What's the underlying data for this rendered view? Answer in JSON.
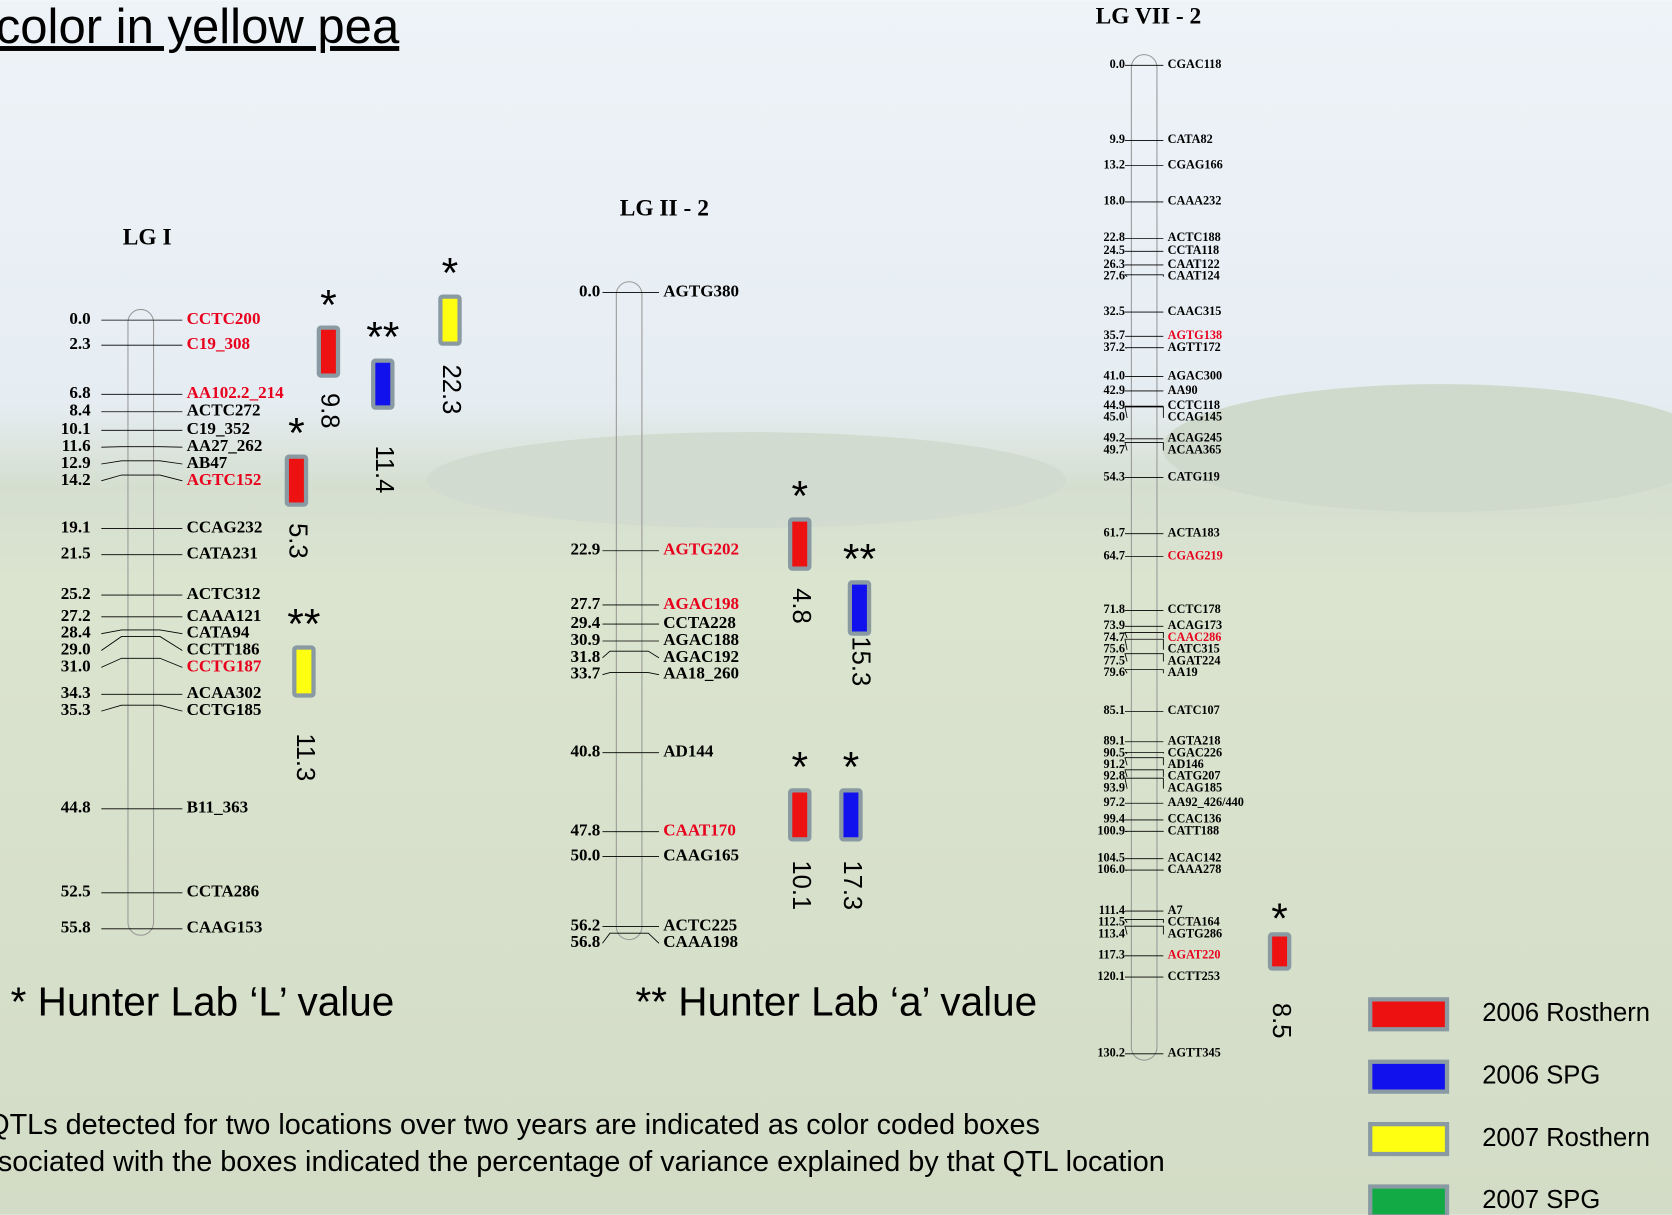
{
  "title": "color in yellow pea",
  "linkage_groups": [
    {
      "name": "LG I",
      "markers": [
        {
          "pos": "0.0",
          "name": "CCTC200",
          "color": "#e8001c"
        },
        {
          "pos": "2.3",
          "name": "C19_308",
          "color": "#e8001c"
        },
        {
          "pos": "6.8",
          "name": "AA102.2_214",
          "color": "#e8001c"
        },
        {
          "pos": "8.4",
          "name": "ACTC272"
        },
        {
          "pos": "10.1",
          "name": "C19_352"
        },
        {
          "pos": "11.6",
          "name": "AA27_262"
        },
        {
          "pos": "12.9",
          "name": "AB47"
        },
        {
          "pos": "14.2",
          "name": "AGTC152",
          "color": "#e8001c"
        },
        {
          "pos": "19.1",
          "name": "CCAG232"
        },
        {
          "pos": "21.5",
          "name": "CATA231"
        },
        {
          "pos": "25.2",
          "name": "ACTC312"
        },
        {
          "pos": "27.2",
          "name": "CAAA121"
        },
        {
          "pos": "28.4",
          "name": "CATA94"
        },
        {
          "pos": "29.0",
          "name": "CCTT186"
        },
        {
          "pos": "31.0",
          "name": "CCTG187",
          "color": "#e8001c"
        },
        {
          "pos": "34.3",
          "name": "ACAA302"
        },
        {
          "pos": "35.3",
          "name": "CCTG185"
        },
        {
          "pos": "44.8",
          "name": "B11_363"
        },
        {
          "pos": "52.5",
          "name": "CCTA286"
        },
        {
          "pos": "55.8",
          "name": "CAAG153"
        }
      ],
      "qtls": [
        {
          "stars": "*",
          "value": "9.8",
          "color": "#ee1111"
        },
        {
          "stars": "**",
          "value": "11.4",
          "color": "#1111ee"
        },
        {
          "stars": "*",
          "value": "22.3",
          "color": "#ffff11"
        },
        {
          "stars": "*",
          "value": "5.3",
          "color": "#ee1111"
        },
        {
          "stars": "**",
          "value": "11.3",
          "color": "#ffff11"
        }
      ]
    },
    {
      "name": "LG II - 2",
      "markers": [
        {
          "pos": "0.0",
          "name": "AGTG380"
        },
        {
          "pos": "22.9",
          "name": "AGTG202",
          "color": "#e8001c"
        },
        {
          "pos": "27.7",
          "name": "AGAC198",
          "color": "#e8001c"
        },
        {
          "pos": "29.4",
          "name": "CCTA228"
        },
        {
          "pos": "30.9",
          "name": "AGAC188"
        },
        {
          "pos": "31.8",
          "name": "AGAC192"
        },
        {
          "pos": "33.7",
          "name": "AA18_260"
        },
        {
          "pos": "40.8",
          "name": "AD144"
        },
        {
          "pos": "47.8",
          "name": "CAAT170",
          "color": "#e8001c"
        },
        {
          "pos": "50.0",
          "name": "CAAG165"
        },
        {
          "pos": "56.2",
          "name": "ACTC225"
        },
        {
          "pos": "56.8",
          "name": "CAAA198"
        }
      ],
      "qtls": [
        {
          "stars": "*",
          "value": "4.8",
          "color": "#ee1111"
        },
        {
          "stars": "**",
          "value": "15.3",
          "color": "#1111ee"
        },
        {
          "stars": "*",
          "value": "10.1",
          "color": "#ee1111"
        },
        {
          "stars": "*",
          "value": "17.3",
          "color": "#1111ee"
        }
      ]
    },
    {
      "name": "LG VII - 2",
      "markers": [
        {
          "pos": "0.0",
          "name": "CGAC118"
        },
        {
          "pos": "9.9",
          "name": "CATA82"
        },
        {
          "pos": "13.2",
          "name": "CGAG166"
        },
        {
          "pos": "18.0",
          "name": "CAAA232"
        },
        {
          "pos": "22.8",
          "name": "ACTC188"
        },
        {
          "pos": "24.5",
          "name": "CCTA118"
        },
        {
          "pos": "26.3",
          "name": "CAAT122"
        },
        {
          "pos": "27.6",
          "name": "CAAT124"
        },
        {
          "pos": "32.5",
          "name": "CAAC315"
        },
        {
          "pos": "35.7",
          "name": "AGTG138",
          "color": "#e8001c"
        },
        {
          "pos": "37.2",
          "name": "AGTT172"
        },
        {
          "pos": "41.0",
          "name": "AGAC300"
        },
        {
          "pos": "42.9",
          "name": "AA90"
        },
        {
          "pos": "44.9",
          "name": "CCTC118"
        },
        {
          "pos": "45.0",
          "name": "CCAG145"
        },
        {
          "pos": "49.2",
          "name": "ACAG245"
        },
        {
          "pos": "49.7",
          "name": "ACAA365"
        },
        {
          "pos": "54.3",
          "name": "CATG119"
        },
        {
          "pos": "61.7",
          "name": "ACTA183"
        },
        {
          "pos": "64.7",
          "name": "CGAG219",
          "color": "#e8001c"
        },
        {
          "pos": "71.8",
          "name": "CCTC178"
        },
        {
          "pos": "73.9",
          "name": "ACAG173"
        },
        {
          "pos": "74.7",
          "name": "CAAC286",
          "color": "#e8001c"
        },
        {
          "pos": "75.6",
          "name": "CATC315"
        },
        {
          "pos": "77.5",
          "name": "AGAT224"
        },
        {
          "pos": "79.6",
          "name": "AA19"
        },
        {
          "pos": "85.1",
          "name": "CATC107"
        },
        {
          "pos": "89.1",
          "name": "AGTA218"
        },
        {
          "pos": "90.5",
          "name": "CGAC226"
        },
        {
          "pos": "91.2",
          "name": "AD146"
        },
        {
          "pos": "92.8",
          "name": "CATG207"
        },
        {
          "pos": "93.9",
          "name": "ACAG185"
        },
        {
          "pos": "97.2",
          "name": "AA92_426/440"
        },
        {
          "pos": "99.4",
          "name": "CCAC136"
        },
        {
          "pos": "100.9",
          "name": "CATT188"
        },
        {
          "pos": "104.5",
          "name": "ACAC142"
        },
        {
          "pos": "106.0",
          "name": "CAAA278"
        },
        {
          "pos": "111.4",
          "name": "A7"
        },
        {
          "pos": "112.5",
          "name": "CCTA164"
        },
        {
          "pos": "113.4",
          "name": "AGTG286"
        },
        {
          "pos": "117.3",
          "name": "AGAT220",
          "color": "#e8001c"
        },
        {
          "pos": "120.1",
          "name": "CCTT253"
        },
        {
          "pos": "130.2",
          "name": "AGTT345"
        }
      ],
      "qtls": [
        {
          "stars": "*",
          "value": "8.5",
          "color": "#ee1111"
        }
      ]
    }
  ],
  "notes": [
    "* Hunter Lab ‘L’ value",
    "** Hunter Lab ‘a’ value"
  ],
  "caption": [
    "QTLs detected for two locations over two years are indicated as color coded boxes",
    "sociated with the boxes indicated  the percentage of variance explained by that QTL location"
  ],
  "legend": [
    {
      "label": "2006 Rosthern",
      "color": "#ee1111"
    },
    {
      "label": "2006 SPG",
      "color": "#1111ee"
    },
    {
      "label": "2007 Rosthern",
      "color": "#ffff11"
    },
    {
      "label": "2007 SPG",
      "color": "#11aa44"
    }
  ]
}
